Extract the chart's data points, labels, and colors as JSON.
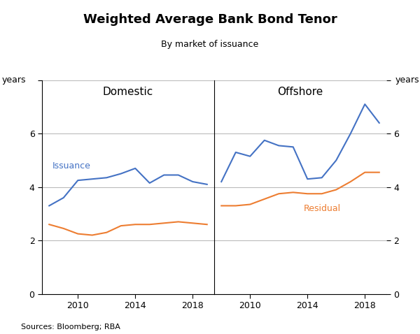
{
  "title": "Weighted Average Bank Bond Tenor",
  "subtitle": "By market of issuance",
  "ylabel": "years",
  "source": "Sources: Bloomberg; RBA",
  "ylim": [
    0,
    8
  ],
  "yticks": [
    0,
    2,
    4,
    6,
    8
  ],
  "ytick_labels": [
    "0",
    "2",
    "4",
    "6",
    ""
  ],
  "panel_left_title": "Domestic",
  "panel_right_title": "Offshore",
  "blue_color": "#4472C4",
  "orange_color": "#ED7D31",
  "domestic_years": [
    2008,
    2009,
    2010,
    2011,
    2012,
    2013,
    2014,
    2015,
    2016,
    2017,
    2018,
    2019
  ],
  "domestic_issuance": [
    3.3,
    3.6,
    4.25,
    4.3,
    4.35,
    4.5,
    4.7,
    4.15,
    4.45,
    4.45,
    4.2,
    4.1
  ],
  "domestic_residual": [
    2.6,
    2.45,
    2.25,
    2.2,
    2.3,
    2.55,
    2.6,
    2.6,
    2.65,
    2.7,
    2.65,
    2.6
  ],
  "offshore_years": [
    2008,
    2009,
    2010,
    2011,
    2012,
    2013,
    2014,
    2015,
    2016,
    2017,
    2018,
    2019
  ],
  "offshore_issuance": [
    4.2,
    5.3,
    5.15,
    5.75,
    5.55,
    5.5,
    4.3,
    4.35,
    5.0,
    6.0,
    7.1,
    6.4
  ],
  "offshore_residual": [
    3.3,
    3.3,
    3.35,
    3.55,
    3.75,
    3.8,
    3.75,
    3.75,
    3.9,
    4.2,
    4.55,
    4.55
  ],
  "issuance_label": "Issuance",
  "residual_label": "Residual",
  "xticks_left": [
    2010,
    2014,
    2018
  ],
  "xticks_right": [
    2010,
    2014,
    2018
  ],
  "xlim_left": [
    2007.5,
    2019.5
  ],
  "xlim_right": [
    2007.5,
    2019.5
  ],
  "grid_color": "#bbbbbb",
  "grid_linewidth": 0.8,
  "line_linewidth": 1.5,
  "title_fontsize": 13,
  "subtitle_fontsize": 9,
  "tick_fontsize": 9,
  "label_fontsize": 9,
  "panel_title_fontsize": 11,
  "source_fontsize": 8
}
